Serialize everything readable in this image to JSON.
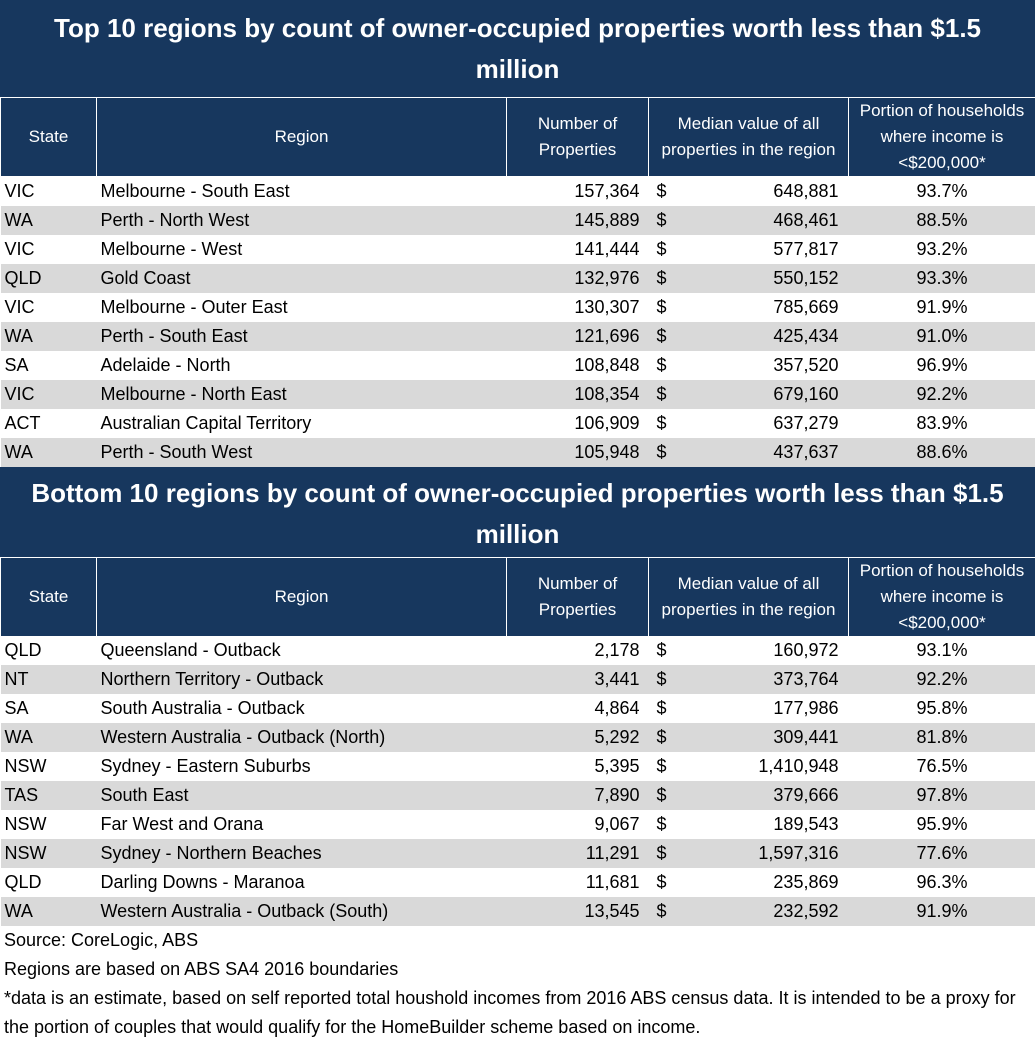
{
  "columns": [
    "State",
    "Region",
    "Number of Properties",
    "Median value of all properties in the region",
    "Portion of households where income is <$200,000*"
  ],
  "chart_data": [
    {
      "type": "table",
      "title": "Top 10 regions by count of owner-occupied properties worth less than $1.5 million",
      "currency_symbol": "$",
      "rows": [
        {
          "state": "VIC",
          "region": "Melbourne - South East",
          "count": "157,364",
          "median": "648,881",
          "portion": "93.7%"
        },
        {
          "state": "WA",
          "region": "Perth - North West",
          "count": "145,889",
          "median": "468,461",
          "portion": "88.5%"
        },
        {
          "state": "VIC",
          "region": "Melbourne - West",
          "count": "141,444",
          "median": "577,817",
          "portion": "93.2%"
        },
        {
          "state": "QLD",
          "region": "Gold Coast",
          "count": "132,976",
          "median": "550,152",
          "portion": "93.3%"
        },
        {
          "state": "VIC",
          "region": "Melbourne - Outer East",
          "count": "130,307",
          "median": "785,669",
          "portion": "91.9%"
        },
        {
          "state": "WA",
          "region": "Perth - South East",
          "count": "121,696",
          "median": "425,434",
          "portion": "91.0%"
        },
        {
          "state": "SA",
          "region": "Adelaide - North",
          "count": "108,848",
          "median": "357,520",
          "portion": "96.9%"
        },
        {
          "state": "VIC",
          "region": "Melbourne - North East",
          "count": "108,354",
          "median": "679,160",
          "portion": "92.2%"
        },
        {
          "state": "ACT",
          "region": "Australian Capital Territory",
          "count": "106,909",
          "median": "637,279",
          "portion": "83.9%"
        },
        {
          "state": "WA",
          "region": "Perth - South West",
          "count": "105,948",
          "median": "437,637",
          "portion": "88.6%"
        }
      ]
    },
    {
      "type": "table",
      "title": "Bottom 10 regions by count of owner-occupied properties worth less than $1.5 million",
      "currency_symbol": "$",
      "rows": [
        {
          "state": "QLD",
          "region": "Queensland - Outback",
          "count": "2,178",
          "median": "160,972",
          "portion": "93.1%"
        },
        {
          "state": "NT",
          "region": "Northern Territory - Outback",
          "count": "3,441",
          "median": "373,764",
          "portion": "92.2%"
        },
        {
          "state": "SA",
          "region": "South Australia - Outback",
          "count": "4,864",
          "median": "177,986",
          "portion": "95.8%"
        },
        {
          "state": "WA",
          "region": "Western Australia - Outback (North)",
          "count": "5,292",
          "median": "309,441",
          "portion": "81.8%"
        },
        {
          "state": "NSW",
          "region": "Sydney - Eastern Suburbs",
          "count": "5,395",
          "median": "1,410,948",
          "portion": "76.5%"
        },
        {
          "state": "TAS",
          "region": "South East",
          "count": "7,890",
          "median": "379,666",
          "portion": "97.8%"
        },
        {
          "state": "NSW",
          "region": "Far West and Orana",
          "count": "9,067",
          "median": "189,543",
          "portion": "95.9%"
        },
        {
          "state": "NSW",
          "region": "Sydney - Northern Beaches",
          "count": "11,291",
          "median": "1,597,316",
          "portion": "77.6%"
        },
        {
          "state": "QLD",
          "region": "Darling Downs - Maranoa",
          "count": "11,681",
          "median": "235,869",
          "portion": "96.3%"
        },
        {
          "state": "WA",
          "region": "Western Australia - Outback (South)",
          "count": "13,545",
          "median": "232,592",
          "portion": "91.9%"
        }
      ]
    }
  ],
  "footer": [
    "Source: CoreLogic, ABS",
    "Regions are based on ABS SA4 2016 boundaries",
    "*data is an estimate, based on self reported total houshold incomes from 2016 ABS census data. It is intended to be a proxy for the portion of couples that would qualify for the HomeBuilder scheme based on income."
  ]
}
